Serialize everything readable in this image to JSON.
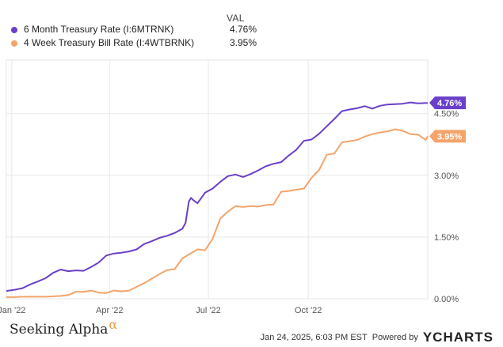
{
  "legend": {
    "header": "VAL",
    "items": [
      {
        "name": "6 Month Treasury Rate (I:6MTRNK)",
        "value": "4.76%",
        "color": "#6a3fc9"
      },
      {
        "name": "4 Week Treasury Bill Rate (I:4WTBRNK)",
        "value": "3.95%",
        "color": "#f4a46a"
      }
    ]
  },
  "footer": {
    "brand": "Seeking Alpha",
    "brand_symbol": "α",
    "timestamp": "Jan 24, 2025, 6:03 PM EST",
    "powered_by": "Powered by",
    "provider": "YCHARTS"
  },
  "chart_data": {
    "type": "line",
    "x_ticks": [
      "Jan '22",
      "Apr '22",
      "Jul '22",
      "Oct '22"
    ],
    "x_tick_dates": [
      "2022-01-01",
      "2022-04-01",
      "2022-07-01",
      "2022-10-01"
    ],
    "x_range": [
      "2021-12-27",
      "2023-01-19"
    ],
    "y_ticks": [
      "0.00%",
      "1.50%",
      "3.00%",
      "4.50%"
    ],
    "y_tick_values": [
      0,
      1.5,
      3.0,
      4.5
    ],
    "ylim": [
      0,
      5.8
    ],
    "grid": true,
    "end_labels": [
      "4.76%",
      "3.95%"
    ],
    "series": [
      {
        "name": "6 Month Treasury Rate (I:6MTRNK)",
        "color": "#6a3fc9",
        "points": [
          [
            "2021-12-27",
            0.19
          ],
          [
            "2022-01-04",
            0.22
          ],
          [
            "2022-01-11",
            0.26
          ],
          [
            "2022-01-18",
            0.35
          ],
          [
            "2022-01-25",
            0.42
          ],
          [
            "2022-02-01",
            0.5
          ],
          [
            "2022-02-08",
            0.63
          ],
          [
            "2022-02-15",
            0.71
          ],
          [
            "2022-02-22",
            0.67
          ],
          [
            "2022-03-01",
            0.69
          ],
          [
            "2022-03-08",
            0.68
          ],
          [
            "2022-03-15",
            0.77
          ],
          [
            "2022-03-22",
            0.88
          ],
          [
            "2022-03-29",
            1.05
          ],
          [
            "2022-04-05",
            1.1
          ],
          [
            "2022-04-12",
            1.12
          ],
          [
            "2022-04-19",
            1.15
          ],
          [
            "2022-04-26",
            1.2
          ],
          [
            "2022-05-03",
            1.33
          ],
          [
            "2022-05-10",
            1.4
          ],
          [
            "2022-05-17",
            1.48
          ],
          [
            "2022-05-24",
            1.53
          ],
          [
            "2022-05-31",
            1.6
          ],
          [
            "2022-06-07",
            1.7
          ],
          [
            "2022-06-10",
            1.84
          ],
          [
            "2022-06-13",
            2.36
          ],
          [
            "2022-06-15",
            2.45
          ],
          [
            "2022-06-17",
            2.4
          ],
          [
            "2022-06-21",
            2.32
          ],
          [
            "2022-06-28",
            2.58
          ],
          [
            "2022-07-05",
            2.68
          ],
          [
            "2022-07-12",
            2.84
          ],
          [
            "2022-07-19",
            2.98
          ],
          [
            "2022-07-26",
            3.02
          ],
          [
            "2022-08-02",
            2.96
          ],
          [
            "2022-08-09",
            3.03
          ],
          [
            "2022-08-16",
            3.12
          ],
          [
            "2022-08-23",
            3.22
          ],
          [
            "2022-08-30",
            3.28
          ],
          [
            "2022-09-06",
            3.32
          ],
          [
            "2022-09-13",
            3.48
          ],
          [
            "2022-09-20",
            3.62
          ],
          [
            "2022-09-27",
            3.84
          ],
          [
            "2022-10-04",
            3.87
          ],
          [
            "2022-10-11",
            4.01
          ],
          [
            "2022-10-18",
            4.19
          ],
          [
            "2022-10-25",
            4.37
          ],
          [
            "2022-11-01",
            4.56
          ],
          [
            "2022-11-08",
            4.6
          ],
          [
            "2022-11-15",
            4.63
          ],
          [
            "2022-11-22",
            4.68
          ],
          [
            "2022-11-29",
            4.62
          ],
          [
            "2022-12-06",
            4.69
          ],
          [
            "2022-12-13",
            4.72
          ],
          [
            "2022-12-20",
            4.73
          ],
          [
            "2022-12-27",
            4.74
          ],
          [
            "2023-01-03",
            4.77
          ],
          [
            "2023-01-10",
            4.75
          ],
          [
            "2023-01-19",
            4.76
          ]
        ]
      },
      {
        "name": "4 Week Treasury Bill Rate (I:4WTBRNK)",
        "color": "#f4a46a",
        "points": [
          [
            "2021-12-27",
            0.04
          ],
          [
            "2022-01-04",
            0.04
          ],
          [
            "2022-01-11",
            0.05
          ],
          [
            "2022-01-18",
            0.05
          ],
          [
            "2022-01-25",
            0.05
          ],
          [
            "2022-02-01",
            0.05
          ],
          [
            "2022-02-08",
            0.06
          ],
          [
            "2022-02-15",
            0.07
          ],
          [
            "2022-02-22",
            0.09
          ],
          [
            "2022-03-01",
            0.17
          ],
          [
            "2022-03-08",
            0.17
          ],
          [
            "2022-03-15",
            0.2
          ],
          [
            "2022-03-22",
            0.15
          ],
          [
            "2022-03-29",
            0.14
          ],
          [
            "2022-04-05",
            0.2
          ],
          [
            "2022-04-12",
            0.18
          ],
          [
            "2022-04-19",
            0.2
          ],
          [
            "2022-04-26",
            0.29
          ],
          [
            "2022-05-03",
            0.38
          ],
          [
            "2022-05-10",
            0.49
          ],
          [
            "2022-05-17",
            0.6
          ],
          [
            "2022-05-24",
            0.7
          ],
          [
            "2022-05-31",
            0.72
          ],
          [
            "2022-06-07",
            0.98
          ],
          [
            "2022-06-14",
            1.09
          ],
          [
            "2022-06-21",
            1.2
          ],
          [
            "2022-06-28",
            1.18
          ],
          [
            "2022-07-05",
            1.46
          ],
          [
            "2022-07-12",
            1.95
          ],
          [
            "2022-07-19",
            2.12
          ],
          [
            "2022-07-26",
            2.25
          ],
          [
            "2022-08-02",
            2.23
          ],
          [
            "2022-08-09",
            2.25
          ],
          [
            "2022-08-16",
            2.24
          ],
          [
            "2022-08-23",
            2.28
          ],
          [
            "2022-08-30",
            2.29
          ],
          [
            "2022-09-06",
            2.6
          ],
          [
            "2022-09-13",
            2.62
          ],
          [
            "2022-09-20",
            2.65
          ],
          [
            "2022-09-27",
            2.68
          ],
          [
            "2022-10-04",
            2.94
          ],
          [
            "2022-10-11",
            3.13
          ],
          [
            "2022-10-18",
            3.5
          ],
          [
            "2022-10-25",
            3.53
          ],
          [
            "2022-11-01",
            3.8
          ],
          [
            "2022-11-08",
            3.83
          ],
          [
            "2022-11-15",
            3.86
          ],
          [
            "2022-11-22",
            3.94
          ],
          [
            "2022-11-29",
            4.0
          ],
          [
            "2022-12-06",
            4.04
          ],
          [
            "2022-12-13",
            4.07
          ],
          [
            "2022-12-20",
            4.12
          ],
          [
            "2022-12-27",
            4.08
          ],
          [
            "2023-01-03",
            4.0
          ],
          [
            "2023-01-10",
            3.99
          ],
          [
            "2023-01-17",
            3.86
          ],
          [
            "2023-01-19",
            3.95
          ]
        ]
      }
    ]
  }
}
